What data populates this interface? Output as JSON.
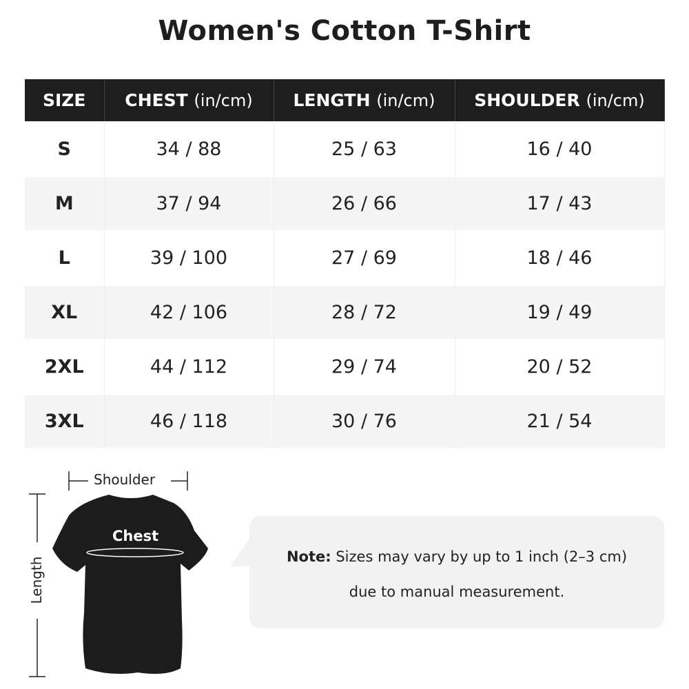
{
  "title": "Women's Cotton T-Shirt",
  "table": {
    "headers": [
      {
        "label": "SIZE",
        "unit": ""
      },
      {
        "label": "CHEST",
        "unit": "(in/cm)"
      },
      {
        "label": "LENGTH",
        "unit": "(in/cm)"
      },
      {
        "label": "SHOULDER",
        "unit": "(in/cm)"
      }
    ],
    "rows": [
      [
        "S",
        "34 / 88",
        "25 / 63",
        "16 / 40"
      ],
      [
        "M",
        "37 / 94",
        "26 / 66",
        "17 / 43"
      ],
      [
        "L",
        "39 / 100",
        "27 / 69",
        "18 / 46"
      ],
      [
        "XL",
        "42 / 106",
        "28 / 72",
        "19 / 49"
      ],
      [
        "2XL",
        "44 / 112",
        "29 / 74",
        "20 / 52"
      ],
      [
        "3XL",
        "46 / 118",
        "30 / 76",
        "21 / 54"
      ]
    ]
  },
  "diagram": {
    "shoulder": "Shoulder",
    "chest": "Chest",
    "length": "Length",
    "shirt_color": "#1c1c1c"
  },
  "note": {
    "label": "Note:",
    "line1": "Sizes may vary by up to 1 inch (2–3 cm)",
    "line2": "due to manual measurement."
  }
}
